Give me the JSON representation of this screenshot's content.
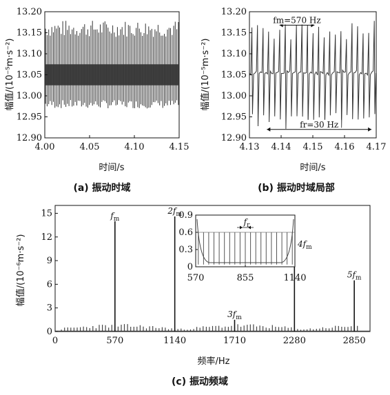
{
  "chart_data": [
    {
      "panel": "a",
      "type": "line",
      "caption": "(a) 振动时域",
      "xlabel": "时间/s",
      "ylabel": "幅值/(10⁻⁵m·s⁻²)",
      "xlim": [
        4.0,
        4.15
      ],
      "ylim": [
        12.9,
        13.2
      ],
      "xticks": [
        "4.00",
        "4.05",
        "4.10",
        "4.15"
      ],
      "yticks": [
        "12.90",
        "12.95",
        "13.00",
        "13.05",
        "13.10",
        "13.15",
        "13.20"
      ],
      "series": [
        {
          "baseline": 13.05,
          "dense_band": [
            13.025,
            13.075
          ],
          "peak_max": [
            13.14,
            13.18
          ],
          "trough_min": [
            12.97,
            12.99
          ],
          "dominant_frequency_hz": 570,
          "modulation_frequency_hz": 30
        }
      ]
    },
    {
      "panel": "b",
      "type": "line",
      "caption": "(b) 振动时域局部",
      "xlabel": "时间/s",
      "ylabel": "幅值/(10⁻⁵m·s⁻²)",
      "xlim": [
        4.13,
        4.17
      ],
      "ylim": [
        12.9,
        13.2
      ],
      "xticks": [
        "4.13",
        "4.14",
        "4.15",
        "4.16",
        "4.17"
      ],
      "yticks": [
        "12.90",
        "12.95",
        "13.00",
        "13.05",
        "13.10",
        "13.15",
        "13.20"
      ],
      "series": [
        {
          "baseline": 13.055,
          "peak_max": [
            13.13,
            13.18
          ],
          "trough_min": [
            12.92,
            12.96
          ],
          "dominant_frequency_hz": 570,
          "modulation_frequency_hz": 30
        }
      ],
      "annotations": [
        {
          "text": "fm=570 Hz",
          "x": [
            4.1395,
            4.1505
          ],
          "y": 13.168
        },
        {
          "text": "fr=30 Hz",
          "x": [
            4.1355,
            4.1685
          ],
          "y": 12.92
        }
      ]
    },
    {
      "panel": "c",
      "type": "line",
      "caption": "(c) 振动频域",
      "xlabel": "频率/Hz",
      "ylabel": "幅值/(10⁻⁶m·s⁻²)",
      "xlim": [
        0,
        3000
      ],
      "ylim": [
        0,
        16
      ],
      "xticks": [
        "0",
        "570",
        "1140",
        "1710",
        "2280",
        "2850"
      ],
      "yticks": [
        "0",
        "3",
        "6",
        "9",
        "12",
        "15"
      ],
      "peaks": [
        {
          "label": "fm",
          "freq": 570,
          "amp": 14.0
        },
        {
          "label": "2fm",
          "freq": 1140,
          "amp": 14.6
        },
        {
          "label": "3fm",
          "freq": 1710,
          "amp": 1.5
        },
        {
          "label": "4fm",
          "freq": 2280,
          "amp": 10.4
        },
        {
          "label": "5fm",
          "freq": 2850,
          "amp": 6.5
        }
      ],
      "sideband_spacing_hz": 30,
      "inset": {
        "xlim": [
          570,
          1140
        ],
        "ylim": [
          0,
          0.9
        ],
        "xticks": [
          "570",
          "855",
          "1140"
        ],
        "yticks": [
          "0",
          "0.3",
          "0.6",
          "0.9"
        ],
        "sideband_level": 0.6,
        "annotation": "fr"
      }
    }
  ]
}
